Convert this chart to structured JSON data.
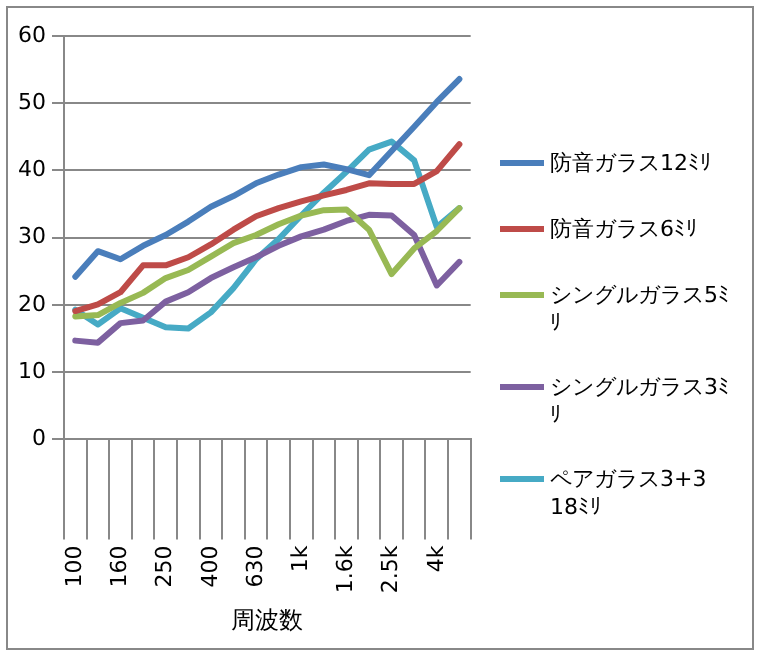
{
  "chart_data": {
    "type": "line",
    "xlabel": "周波数",
    "categories": [
      "100",
      null,
      "160",
      null,
      "250",
      null,
      "400",
      null,
      "630",
      null,
      "1k",
      null,
      "1.6k",
      null,
      "2.5k",
      null,
      "4k",
      null
    ],
    "ylim": [
      0,
      60
    ],
    "yticks": [
      0,
      10,
      20,
      30,
      40,
      50,
      60
    ],
    "grid": "y",
    "legend": "right",
    "marker": "none",
    "line_style": "solid",
    "series": [
      {
        "name": "防音ガラス12ﾐﾘ",
        "color": "#4a7ebb",
        "values": [
          24.2,
          28.0,
          26.8,
          28.8,
          30.4,
          32.4,
          34.6,
          36.2,
          38.1,
          39.4,
          40.5,
          40.9,
          40.2,
          39.3,
          42.9,
          46.5,
          50.2,
          53.6
        ]
      },
      {
        "name": "防音ガラス6ﾐﾘ",
        "color": "#be4b48",
        "values": [
          19.1,
          20.1,
          21.9,
          25.9,
          25.9,
          27.1,
          29.0,
          31.2,
          33.2,
          34.4,
          35.4,
          36.3,
          37.1,
          38.1,
          38.0,
          38.0,
          39.9,
          43.9
        ]
      },
      {
        "name": "シングルガラス5ﾐﾘ",
        "color": "#98b954",
        "values": [
          18.3,
          18.5,
          20.3,
          21.8,
          24.0,
          25.2,
          27.2,
          29.2,
          30.4,
          32.0,
          33.3,
          34.1,
          34.2,
          31.2,
          24.6,
          28.4,
          31.0,
          34.4
        ]
      },
      {
        "name": "シングルガラス3ﾐﾘ",
        "color": "#7d60a0",
        "values": [
          14.7,
          14.4,
          17.3,
          17.7,
          20.5,
          21.9,
          24.0,
          25.6,
          27.1,
          28.8,
          30.2,
          31.2,
          32.5,
          33.4,
          33.3,
          30.4,
          22.9,
          26.4
        ]
      },
      {
        "name": "ペアガラス3+3　18ﾐﾘ",
        "color": "#46aac5",
        "values": [
          19.3,
          17.1,
          19.5,
          18.1,
          16.7,
          16.5,
          18.9,
          22.5,
          26.8,
          29.8,
          33.3,
          36.7,
          39.8,
          43.1,
          44.3,
          41.5,
          31.6,
          34.4
        ]
      }
    ]
  }
}
